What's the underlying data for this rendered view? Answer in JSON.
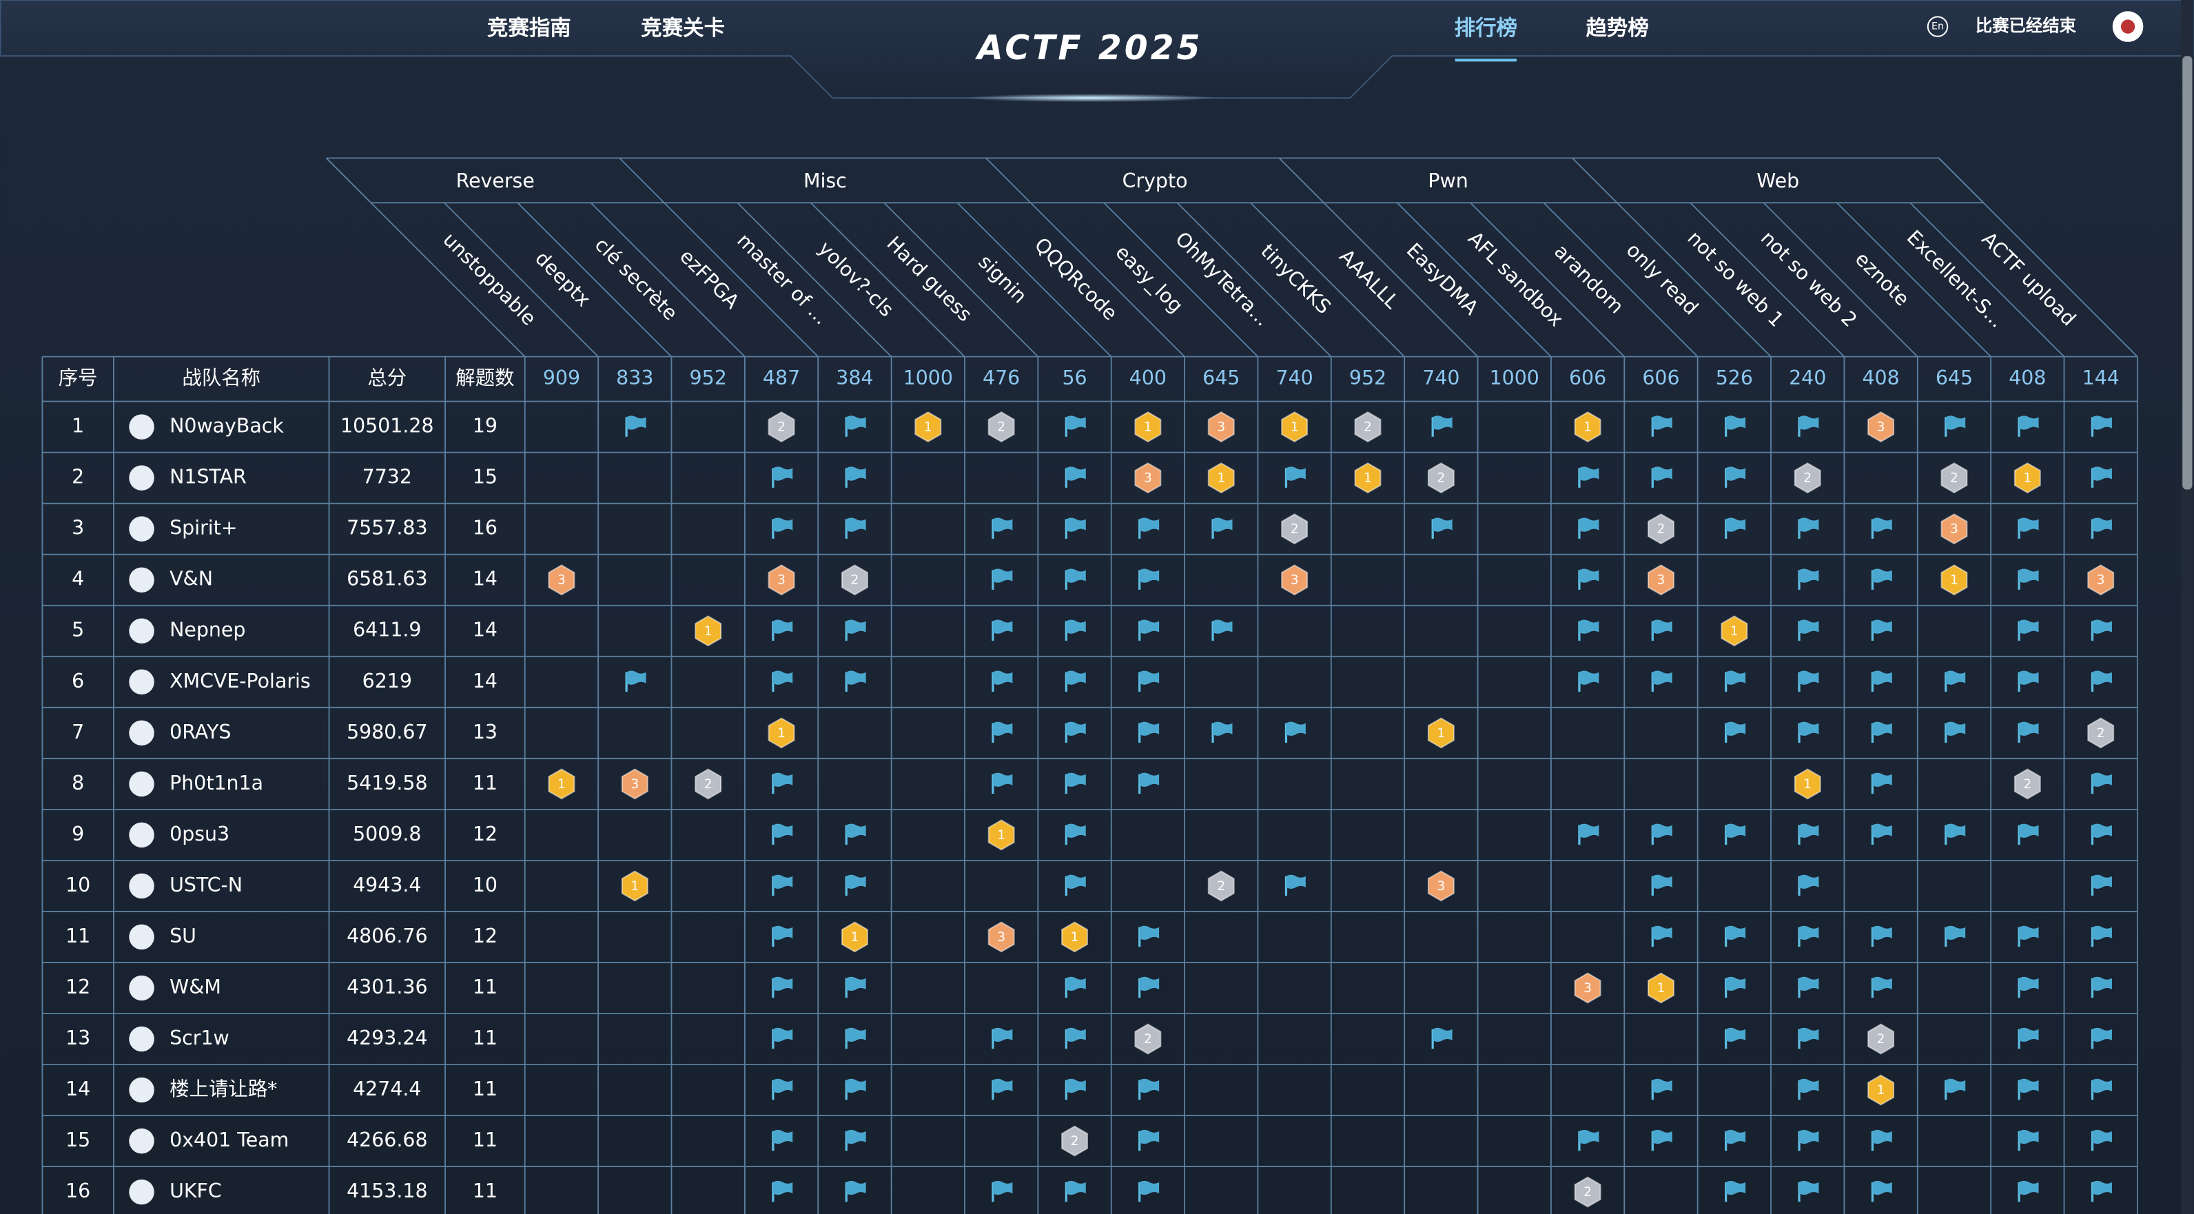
{
  "nav": {
    "left": [
      "竞赛指南",
      "竞赛关卡"
    ],
    "title": "ACTF 2025",
    "right": [
      "排行榜",
      "趋势榜"
    ],
    "language": "En",
    "status": "比赛已经结束"
  },
  "table": {
    "headers": [
      "序号",
      "战队名称",
      "总分",
      "解题数"
    ],
    "categories": [
      {
        "name": "Reverse",
        "challenges": [
          {
            "name": "unstoppable",
            "score": 909
          },
          {
            "name": "deeptx",
            "score": 833
          },
          {
            "name": "clé secrète",
            "score": 952
          },
          {
            "name": "ezFPGA",
            "score": 487
          }
        ]
      },
      {
        "name": "Misc",
        "challenges": [
          {
            "name": "master of ...",
            "score": 384
          },
          {
            "name": "yolov?-cls",
            "score": 1000
          },
          {
            "name": "Hard guess",
            "score": 476
          },
          {
            "name": "signin",
            "score": 56
          },
          {
            "name": "QQQRcode",
            "score": 400
          }
        ]
      },
      {
        "name": "Crypto",
        "challenges": [
          {
            "name": "easy_log",
            "score": 645
          },
          {
            "name": "OhMyTetra...",
            "score": 740
          },
          {
            "name": "tinyCKKS",
            "score": 952
          },
          {
            "name": "AAALLL",
            "score": 740
          }
        ]
      },
      {
        "name": "Pwn",
        "challenges": [
          {
            "name": "EasyDMA",
            "score": 1000
          },
          {
            "name": "AFL sandbox",
            "score": 606
          },
          {
            "name": "arandom",
            "score": 606
          },
          {
            "name": "only read",
            "score": 526
          }
        ]
      },
      {
        "name": "Web",
        "challenges": [
          {
            "name": "not so web 1",
            "score": 240
          },
          {
            "name": "not so web 2",
            "score": 408
          },
          {
            "name": "eznote",
            "score": 645
          },
          {
            "name": "Excellent-S...",
            "score": 408
          },
          {
            "name": "ACTF upload",
            "score": 144
          }
        ]
      }
    ],
    "rows": [
      {
        "rank": 1,
        "team": "N0wayBack",
        "score": 10501.28,
        "solved": 19,
        "cells": [
          null,
          true,
          null,
          2,
          true,
          1,
          2,
          true,
          1,
          3,
          1,
          2,
          true,
          null,
          1,
          true,
          true,
          true,
          3,
          true,
          true,
          true
        ]
      },
      {
        "rank": 2,
        "team": "N1STAR",
        "score": 7732,
        "solved": 15,
        "cells": [
          null,
          null,
          null,
          true,
          true,
          null,
          null,
          true,
          3,
          1,
          true,
          1,
          2,
          null,
          true,
          true,
          true,
          2,
          null,
          2,
          1,
          true
        ]
      },
      {
        "rank": 3,
        "team": "Spirit+",
        "score": 7557.83,
        "solved": 16,
        "cells": [
          null,
          null,
          null,
          true,
          true,
          null,
          true,
          true,
          true,
          true,
          2,
          null,
          true,
          null,
          true,
          2,
          true,
          true,
          true,
          3,
          true,
          true
        ]
      },
      {
        "rank": 4,
        "team": "V&N",
        "score": 6581.63,
        "solved": 14,
        "cells": [
          3,
          null,
          null,
          3,
          2,
          null,
          true,
          true,
          true,
          null,
          3,
          null,
          null,
          null,
          true,
          3,
          null,
          true,
          true,
          1,
          true,
          3
        ]
      },
      {
        "rank": 5,
        "team": "Nepnep",
        "score": 6411.9,
        "solved": 14,
        "cells": [
          null,
          null,
          1,
          true,
          true,
          null,
          true,
          true,
          true,
          true,
          null,
          null,
          null,
          null,
          true,
          true,
          1,
          true,
          true,
          null,
          true,
          true
        ]
      },
      {
        "rank": 6,
        "team": "XMCVE-Polaris",
        "score": 6219,
        "solved": 14,
        "cells": [
          null,
          true,
          null,
          true,
          true,
          null,
          true,
          true,
          true,
          null,
          null,
          null,
          null,
          null,
          true,
          true,
          true,
          true,
          true,
          true,
          true,
          true
        ]
      },
      {
        "rank": 7,
        "team": "0RAYS",
        "score": 5980.67,
        "solved": 13,
        "cells": [
          null,
          null,
          null,
          1,
          null,
          null,
          true,
          true,
          true,
          true,
          true,
          null,
          1,
          null,
          null,
          null,
          true,
          true,
          true,
          true,
          true,
          2
        ]
      },
      {
        "rank": 8,
        "team": "Ph0t1n1a",
        "score": 5419.58,
        "solved": 11,
        "cells": [
          1,
          3,
          2,
          true,
          null,
          null,
          true,
          true,
          true,
          null,
          null,
          null,
          null,
          null,
          null,
          null,
          null,
          1,
          true,
          null,
          2,
          true
        ]
      },
      {
        "rank": 9,
        "team": "0psu3",
        "score": 5009.8,
        "solved": 12,
        "cells": [
          null,
          null,
          null,
          true,
          true,
          null,
          1,
          true,
          null,
          null,
          null,
          null,
          null,
          null,
          true,
          true,
          true,
          true,
          true,
          true,
          true,
          true
        ]
      },
      {
        "rank": 10,
        "team": "USTC-N",
        "score": 4943.4,
        "solved": 10,
        "cells": [
          null,
          1,
          null,
          true,
          true,
          null,
          null,
          true,
          null,
          2,
          true,
          null,
          3,
          null,
          null,
          true,
          null,
          true,
          null,
          null,
          null,
          true
        ]
      },
      {
        "rank": 11,
        "team": "SU",
        "score": 4806.76,
        "solved": 12,
        "cells": [
          null,
          null,
          null,
          true,
          1,
          null,
          3,
          1,
          true,
          null,
          null,
          null,
          null,
          null,
          null,
          true,
          true,
          true,
          true,
          true,
          true,
          true
        ]
      },
      {
        "rank": 12,
        "team": "W&M",
        "score": 4301.36,
        "solved": 11,
        "cells": [
          null,
          null,
          null,
          true,
          true,
          null,
          null,
          true,
          true,
          null,
          null,
          null,
          null,
          null,
          3,
          1,
          true,
          true,
          true,
          null,
          true,
          true
        ]
      },
      {
        "rank": 13,
        "team": "Scr1w",
        "score": 4293.24,
        "solved": 11,
        "cells": [
          null,
          null,
          null,
          true,
          true,
          null,
          true,
          true,
          2,
          null,
          null,
          null,
          true,
          null,
          null,
          null,
          true,
          true,
          2,
          null,
          true,
          true
        ]
      },
      {
        "rank": 14,
        "team": "楼上请让路*",
        "score": 4274.4,
        "solved": 11,
        "cells": [
          null,
          null,
          null,
          true,
          true,
          null,
          true,
          true,
          true,
          null,
          null,
          null,
          null,
          null,
          null,
          true,
          null,
          true,
          1,
          true,
          true,
          true
        ]
      },
      {
        "rank": 15,
        "team": "0x401 Team",
        "score": 4266.68,
        "solved": 11,
        "cells": [
          null,
          null,
          null,
          true,
          true,
          null,
          null,
          2,
          true,
          null,
          null,
          null,
          null,
          null,
          true,
          true,
          true,
          true,
          true,
          null,
          true,
          true
        ]
      },
      {
        "rank": 16,
        "team": "UKFC",
        "score": 4153.18,
        "solved": 11,
        "cells": [
          null,
          null,
          null,
          true,
          true,
          null,
          true,
          true,
          true,
          null,
          null,
          null,
          null,
          null,
          2,
          null,
          true,
          true,
          true,
          null,
          true,
          true
        ]
      }
    ]
  }
}
